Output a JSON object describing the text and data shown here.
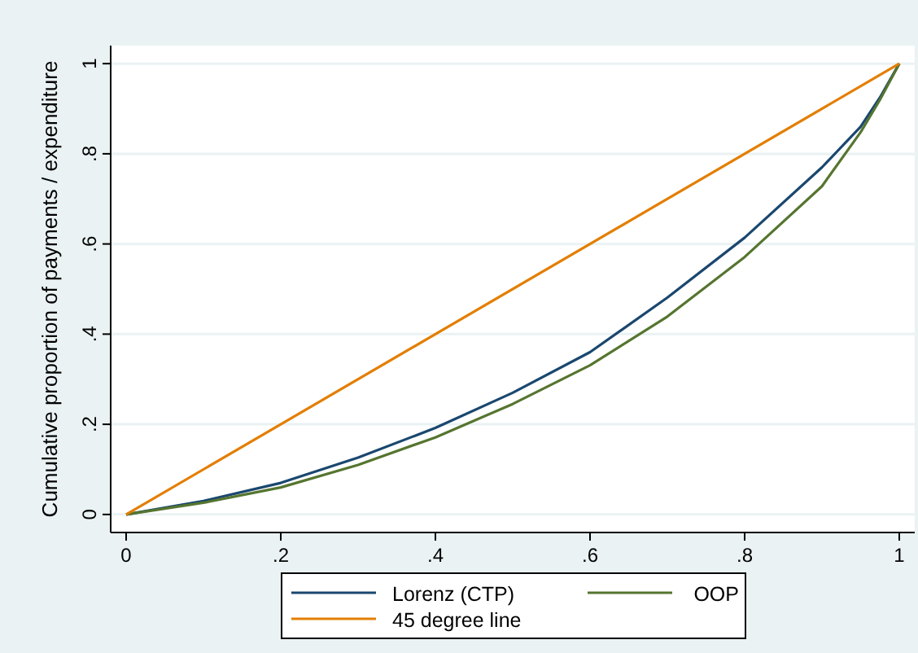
{
  "chart_data": {
    "type": "line",
    "ylabel": "Cumulative proportion of payments / expenditure",
    "xlim": [
      -0.02,
      1.02
    ],
    "ylim": [
      -0.04,
      1.04
    ],
    "xticks": [
      {
        "value": 0,
        "label": "0"
      },
      {
        "value": 0.2,
        "label": ".2"
      },
      {
        "value": 0.4,
        "label": ".4"
      },
      {
        "value": 0.6,
        "label": ".6"
      },
      {
        "value": 0.8,
        "label": ".8"
      },
      {
        "value": 1,
        "label": "1"
      }
    ],
    "yticks": [
      {
        "value": 0,
        "label": "0"
      },
      {
        "value": 0.2,
        "label": ".2"
      },
      {
        "value": 0.4,
        "label": ".4"
      },
      {
        "value": 0.6,
        "label": ".6"
      },
      {
        "value": 0.8,
        "label": ".8"
      },
      {
        "value": 1,
        "label": "1"
      }
    ],
    "grid": "y",
    "legend": "bottom",
    "marker": "none",
    "line_style": "solid",
    "series": [
      {
        "name": "Lorenz (CTP)",
        "color": "#1a476f",
        "x": [
          0,
          0.1,
          0.2,
          0.3,
          0.4,
          0.5,
          0.6,
          0.7,
          0.8,
          0.9,
          0.95,
          0.975,
          1
        ],
        "values": [
          0,
          0.03,
          0.07,
          0.126,
          0.192,
          0.27,
          0.36,
          0.481,
          0.614,
          0.77,
          0.86,
          0.925,
          1
        ]
      },
      {
        "name": "OOP",
        "color": "#55752f",
        "x": [
          0,
          0.1,
          0.2,
          0.3,
          0.4,
          0.5,
          0.6,
          0.7,
          0.8,
          0.9,
          0.95,
          0.975,
          1
        ],
        "values": [
          0,
          0.026,
          0.06,
          0.11,
          0.171,
          0.245,
          0.331,
          0.439,
          0.571,
          0.728,
          0.848,
          0.92,
          1
        ]
      },
      {
        "name": "45 degree line",
        "color": "#e37e00",
        "x": [
          0,
          1
        ],
        "values": [
          0,
          1
        ]
      }
    ]
  }
}
